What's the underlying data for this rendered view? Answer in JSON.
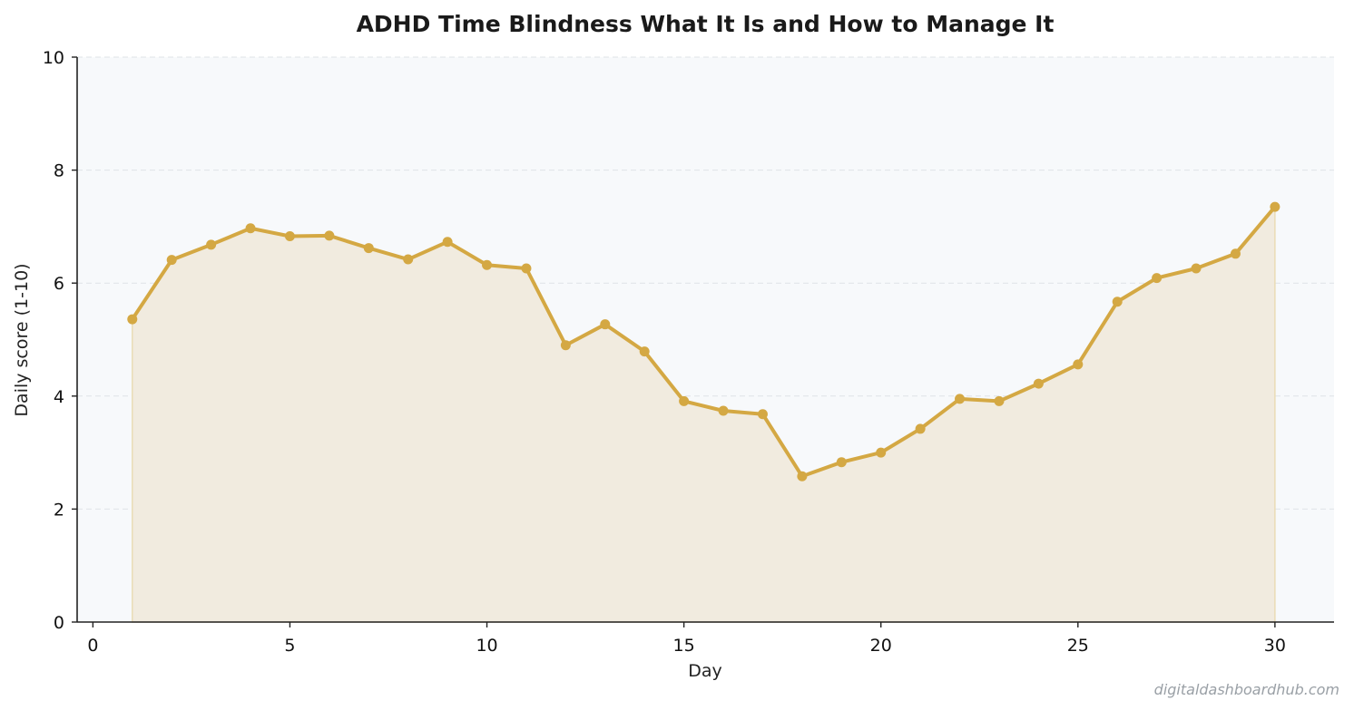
{
  "chart_data": {
    "type": "line",
    "title": "ADHD Time Blindness  What It Is and How to Manage It",
    "xlabel": "Day",
    "ylabel": "Daily score (1-10)",
    "xlim": [
      -0.4,
      31.5
    ],
    "ylim": [
      0,
      10
    ],
    "x_ticks": [
      0,
      5,
      10,
      15,
      20,
      25,
      30
    ],
    "y_ticks": [
      0,
      2,
      4,
      6,
      8,
      10
    ],
    "grid": "horizontal dashed",
    "legend": "none",
    "fill_under_line": true,
    "series": [
      {
        "color": "#d4a843",
        "x": [
          1,
          2,
          3,
          4,
          5,
          6,
          7,
          8,
          9,
          10,
          11,
          12,
          13,
          14,
          15,
          16,
          17,
          18,
          19,
          20,
          21,
          22,
          23,
          24,
          25,
          26,
          27,
          28,
          29,
          30
        ],
        "values": [
          5.36,
          6.41,
          6.68,
          6.97,
          6.83,
          6.84,
          6.62,
          6.42,
          6.73,
          6.32,
          6.26,
          4.9,
          5.27,
          4.79,
          3.91,
          3.74,
          3.68,
          2.58,
          2.83,
          3.0,
          3.42,
          3.95,
          3.91,
          4.22,
          4.56,
          5.67,
          6.09,
          6.26,
          6.52,
          7.35
        ]
      }
    ]
  },
  "watermark": "digitaldashboardhub.com",
  "colors": {
    "plot_background": "#f7f9fb",
    "fill": "#f1ebdf",
    "grid": "#dfe3e7",
    "axis": "#222222"
  }
}
